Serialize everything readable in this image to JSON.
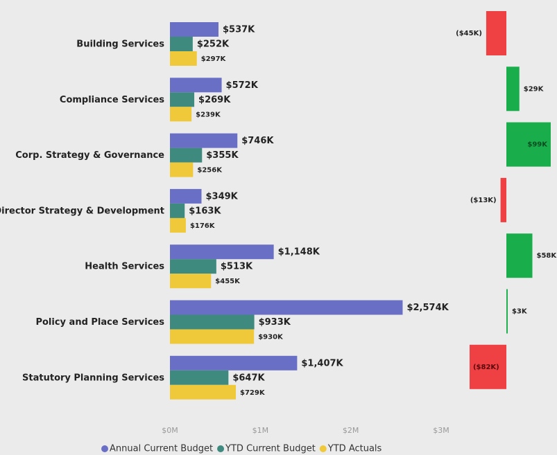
{
  "chart_data": [
    {
      "type": "hbar",
      "categories": [
        "Building Services",
        "Compliance Services",
        "Corp. Strategy & Governance",
        "Director Strategy & Development",
        "Health Services",
        "Policy and Place Services",
        "Statutory Planning Services"
      ],
      "series": [
        {
          "name": "Annual Current Budget",
          "color": "#6a6fc6",
          "values": [
            537000,
            572000,
            746000,
            349000,
            1148000,
            2574000,
            1407000
          ],
          "value_labels": [
            "$537K",
            "$572K",
            "$746K",
            "$349K",
            "$1,148K",
            "$2,574K",
            "$1,407K"
          ]
        },
        {
          "name": "YTD Current Budget",
          "color": "#3f8a7e",
          "values": [
            252000,
            269000,
            355000,
            163000,
            513000,
            933000,
            647000
          ],
          "value_labels": [
            "$252K",
            "$269K",
            "$355K",
            "$163K",
            "$513K",
            "$933K",
            "$647K"
          ]
        },
        {
          "name": "YTD Actuals",
          "color": "#f0c93a",
          "values": [
            297000,
            239000,
            256000,
            176000,
            455000,
            930000,
            729000
          ],
          "value_labels": [
            "$297K",
            "$239K",
            "$256K",
            "$176K",
            "$455K",
            "$930K",
            "$729K"
          ]
        }
      ],
      "xlim": [
        0,
        3000000
      ],
      "xticks": [
        {
          "value": 0,
          "label": "$0M"
        },
        {
          "value": 1000000,
          "label": "$1M"
        },
        {
          "value": 2000000,
          "label": "$2M"
        },
        {
          "value": 3000000,
          "label": "$3M"
        }
      ],
      "legend": "bottom"
    },
    {
      "type": "variance",
      "values": [
        -45000,
        29000,
        99000,
        -13000,
        58000,
        3000,
        -82000
      ],
      "value_labels": [
        "($45K)",
        "$29K",
        "$99K",
        "($13K)",
        "$58K",
        "$3K",
        "($82K)"
      ],
      "positive_color": "#1aad4b",
      "negative_color": "#ef4044"
    }
  ]
}
